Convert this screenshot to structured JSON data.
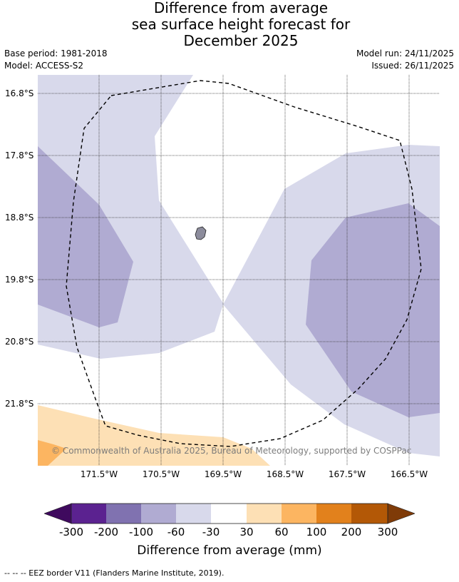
{
  "title": {
    "line1": "Difference from average",
    "line2": "sea surface height forecast for",
    "line3": "December 2025"
  },
  "meta": {
    "base_period": "Base period: 1981-2018",
    "model": "Model: ACCESS-S2",
    "model_run": "Model run: 24/11/2025",
    "issued": "Issued: 26/11/2025"
  },
  "map": {
    "lat_labels": [
      "16.8°S",
      "17.8°S",
      "18.8°S",
      "19.8°S",
      "20.8°S",
      "21.8°S"
    ],
    "lon_labels": [
      "171.5°W",
      "170.5°W",
      "169.5°W",
      "168.5°W",
      "167.5°W",
      "166.5°W"
    ],
    "copyright": "© Commonwealth of Australia 2025, Bureau of Meteorology, supported by COSPPac",
    "colors": {
      "band_m30_0": "#ffffff",
      "band_m60_m30": "#d8d9eb",
      "band_m100_m60": "#b0abd2",
      "band_30_60": "#fde0b5",
      "band_60_100": "#fcb561",
      "island": "#8c8c9c",
      "eez_line": "#000000"
    }
  },
  "colorbar": {
    "tick_labels": [
      "-300",
      "-200",
      "-100",
      "-60",
      "-30",
      "30",
      "60",
      "100",
      "200",
      "300"
    ],
    "colors": [
      "#3f0a5e",
      "#5b2290",
      "#8072b0",
      "#b0abd2",
      "#d8d9eb",
      "#ffffff",
      "#fde0b5",
      "#fcb561",
      "#e2811c",
      "#b35806",
      "#7f3b08"
    ],
    "label": "Difference from average (mm)"
  },
  "legend": {
    "text": "--  --  -- EEZ border V11 (Flanders Marine Institute, 2019)."
  }
}
